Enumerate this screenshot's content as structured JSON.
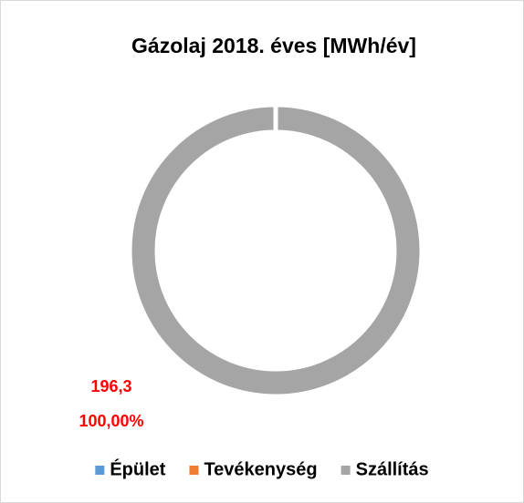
{
  "chart_data": {
    "type": "donut",
    "title": "Gázolaj 2018. éves [MWh/év]",
    "categories": [
      "Épület",
      "Tevékenység",
      "Szállítás"
    ],
    "values": [
      0,
      0,
      196.3
    ],
    "value_labels": [
      null,
      null,
      "196,3"
    ],
    "percentages": [
      0,
      0,
      100
    ],
    "percentage_labels": [
      null,
      null,
      "100,00%"
    ],
    "colors": [
      "#5b9bd5",
      "#ed7d31",
      "#a5a5a5"
    ],
    "label_color": "#ff0000",
    "legend": "bottom"
  }
}
